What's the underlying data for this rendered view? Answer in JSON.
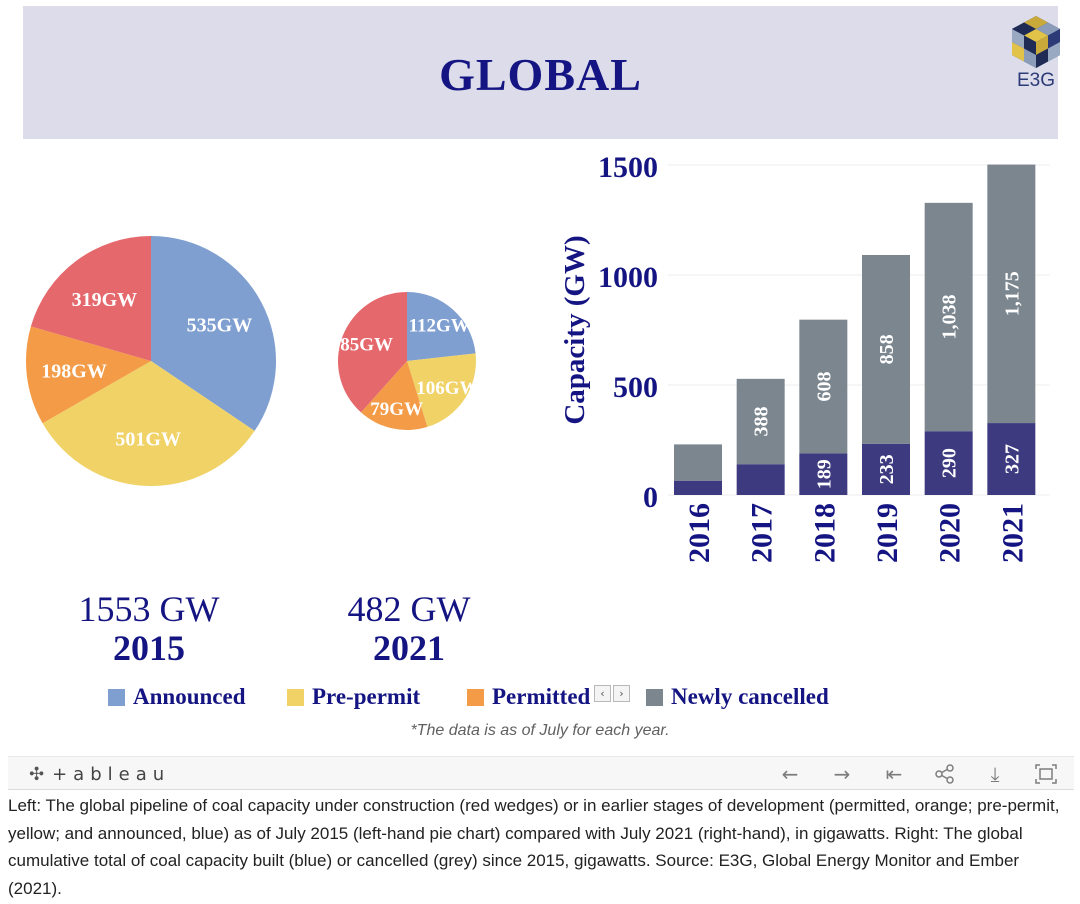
{
  "header": {
    "title": "GLOBAL",
    "logo_text": "E3G"
  },
  "colors": {
    "announced": "#7f9fd1",
    "pre_permit": "#f0d267",
    "permitted": "#f39b47",
    "under_construction": "#e5686d",
    "built": "#3d3a80",
    "cancelled": "#7b868f",
    "navy": "#141482"
  },
  "chart_data": [
    {
      "type": "pie",
      "title": "2015",
      "total_label": "1553 GW",
      "slices": [
        {
          "name": "Announced",
          "value": 535,
          "label": "535GW",
          "color": "#7f9fd1"
        },
        {
          "name": "Pre-permit",
          "value": 501,
          "label": "501GW",
          "color": "#f0d267"
        },
        {
          "name": "Permitted",
          "value": 198,
          "label": "198GW",
          "color": "#f39b47"
        },
        {
          "name": "Under construction",
          "value": 319,
          "label": "319GW",
          "color": "#e5686d"
        }
      ]
    },
    {
      "type": "pie",
      "title": "2021",
      "total_label": "482 GW",
      "slices": [
        {
          "name": "Announced",
          "value": 112,
          "label": "112GW",
          "color": "#7f9fd1"
        },
        {
          "name": "Pre-permit",
          "value": 106,
          "label": "106GW",
          "color": "#f0d267"
        },
        {
          "name": "Permitted",
          "value": 79,
          "label": "79GW",
          "color": "#f39b47"
        },
        {
          "name": "Under construction",
          "value": 185,
          "label": "185GW",
          "color": "#e5686d"
        }
      ]
    },
    {
      "type": "bar",
      "stacked": true,
      "ylabel": "Capacity (GW)",
      "ylim": [
        0,
        1500
      ],
      "yticks": [
        0,
        500,
        1000,
        1500
      ],
      "categories": [
        "2016",
        "2017",
        "2018",
        "2019",
        "2020",
        "2021"
      ],
      "series": [
        {
          "name": "Built",
          "color": "#3d3a80",
          "values": [
            65,
            140,
            189,
            233,
            290,
            327
          ],
          "labels": [
            "",
            "",
            "189",
            "233",
            "290",
            "327"
          ]
        },
        {
          "name": "Newly cancelled",
          "color": "#7b868f",
          "values": [
            165,
            388,
            608,
            858,
            1038,
            1175
          ],
          "labels": [
            "",
            "388",
            "608",
            "858",
            "1,038",
            "1,175"
          ]
        }
      ]
    }
  ],
  "legend": {
    "items": [
      {
        "label": "Announced",
        "color": "#7f9fd1"
      },
      {
        "label": "Pre-permit",
        "color": "#f0d267"
      },
      {
        "label": "Permitted",
        "color": "#f39b47"
      },
      {
        "label": "Newly cancelled",
        "color": "#7b868f"
      }
    ],
    "prev": "‹",
    "next": "›"
  },
  "note": "*The data is as of July for each year.",
  "toolbar": {
    "brand": "+ableau",
    "brand_mark": "✣",
    "undo": "←",
    "redo": "→",
    "revert": "⇤",
    "share": "⋖",
    "download": "⤓",
    "fullscreen": "⛶"
  },
  "caption": "Left: The global pipeline of coal capacity under construction (red wedges) or in earlier stages of development (permitted, orange; pre-permit, yellow; and announced, blue) as of July 2015 (left-hand pie chart) compared with July 2021 (right-hand), in gigawatts. Right: The global cumulative total of coal capacity built (blue) or cancelled (grey) since 2015, gigawatts. Source: E3G, Global Energy Monitor and Ember (2021)."
}
